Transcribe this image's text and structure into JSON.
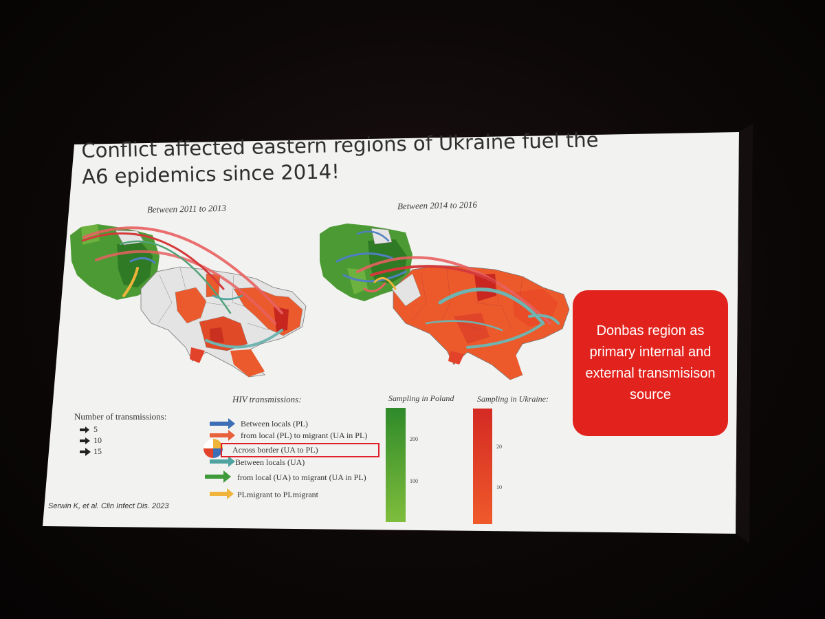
{
  "slide": {
    "title_line1": "Conflict affected eastern regions of Ukraine fuel the",
    "title_line2": "A6 epidemics since 2014!",
    "period_left": "Between 2011 to 2013",
    "period_right": "Between 2014 to 2016",
    "citation": "Serwin K, et al. Clin Infect Dis. 2023",
    "callout": "Donbas region as primary internal and external transmisison source"
  },
  "legend": {
    "number_title": "Number of transmissions:",
    "numbers": [
      "5",
      "10",
      "15"
    ],
    "hiv_title": "HIV transmissions:",
    "items": [
      {
        "label": "Between locals (PL)",
        "color": "#3d6fb6"
      },
      {
        "label": "from local (PL) to migrant (UA in PL)",
        "color": "#e8603c"
      },
      {
        "label": "Across border (UA to PL)",
        "color": "multicolor"
      },
      {
        "label": "Between locals (UA)",
        "color": "#4fa3a0"
      },
      {
        "label": "from local (UA) to migrant (UA in PL)",
        "color": "#3f9a3a"
      },
      {
        "label": "PLmigrant to PLmigrant",
        "color": "#f0b43a"
      }
    ]
  },
  "sampling": {
    "poland_title": "Sampling in Poland",
    "ukraine_title": "Sampling in Ukraine:",
    "poland_ticks": [
      "200",
      "100"
    ],
    "ukraine_ticks": [
      "20",
      "10"
    ],
    "poland_colors": [
      "#2f8a2a",
      "#7fbd3c"
    ],
    "ukraine_colors": [
      "#d42a23",
      "#ef5a2a"
    ]
  },
  "colors": {
    "slide_bg": "#f2f2f0",
    "callout_bg": "#e2231d",
    "highlight_box": "#e0202a"
  }
}
